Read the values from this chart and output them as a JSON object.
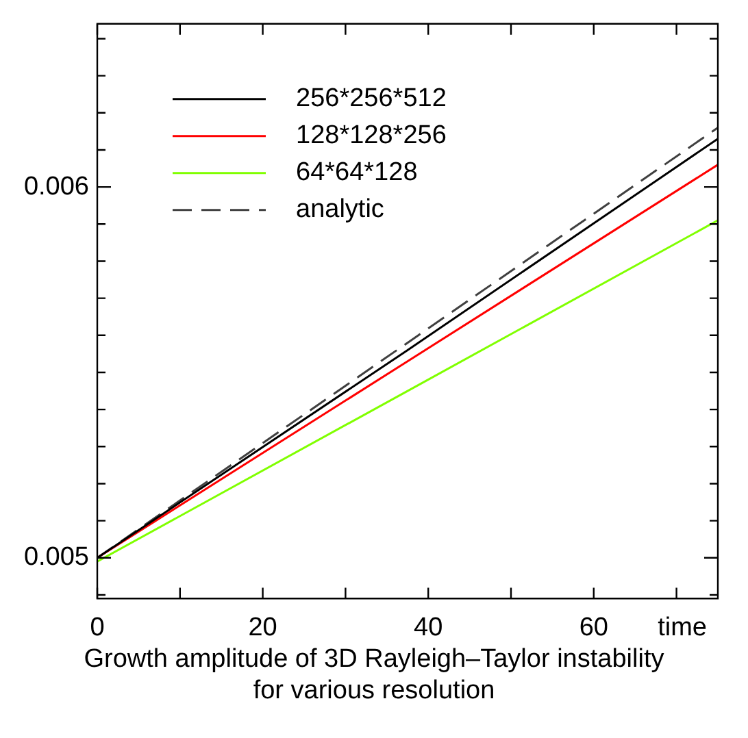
{
  "chart_data": {
    "type": "line",
    "xlabel": "time",
    "annotations": [
      "Growth amplitude of 3D Rayleigh–Taylor instability\nfor various resolution"
    ],
    "x": [
      0,
      37.5,
      75
    ],
    "series": [
      {
        "name": "256*256*512",
        "color": "#000000",
        "values": [
          0.005,
          0.00556,
          0.00613
        ]
      },
      {
        "name": "128*128*256",
        "color": "#ff0000",
        "values": [
          0.005,
          0.00553,
          0.00606
        ]
      },
      {
        "name": "64*64*128",
        "color": "#80ff00",
        "values": [
          0.00499,
          0.00545,
          0.00591
        ]
      },
      {
        "name": "analytic",
        "color": "#404040",
        "line_style": "dashed",
        "values": [
          0.005,
          0.00558,
          0.00616
        ]
      }
    ],
    "xlim": [
      0,
      75
    ],
    "xticks": [
      0,
      {
        "value": 10,
        "label": null
      },
      20,
      {
        "value": 30,
        "label": null
      },
      40,
      {
        "value": 50,
        "label": null
      },
      60,
      {
        "value": 70,
        "label": null
      }
    ],
    "ylim": [
      0.00489,
      0.00644
    ],
    "yticks": [
      {
        "value": 0.0049,
        "label": null
      },
      0.005,
      {
        "value": 0.0051,
        "label": null
      },
      {
        "value": 0.0052,
        "label": null
      },
      {
        "value": 0.0053,
        "label": null
      },
      {
        "value": 0.0054,
        "label": null
      },
      {
        "value": 0.0055,
        "label": null
      },
      {
        "value": 0.0056,
        "label": null
      },
      {
        "value": 0.0057,
        "label": null
      },
      {
        "value": 0.0058,
        "label": null
      },
      {
        "value": 0.0059,
        "label": null
      },
      0.006,
      {
        "value": 0.0061,
        "label": null
      },
      {
        "value": 0.0062,
        "label": null
      },
      {
        "value": 0.0063,
        "label": null
      },
      {
        "value": 0.0064,
        "label": null
      }
    ],
    "grid": false,
    "legend": "top left",
    "marker": "none",
    "line_style": "solid"
  }
}
